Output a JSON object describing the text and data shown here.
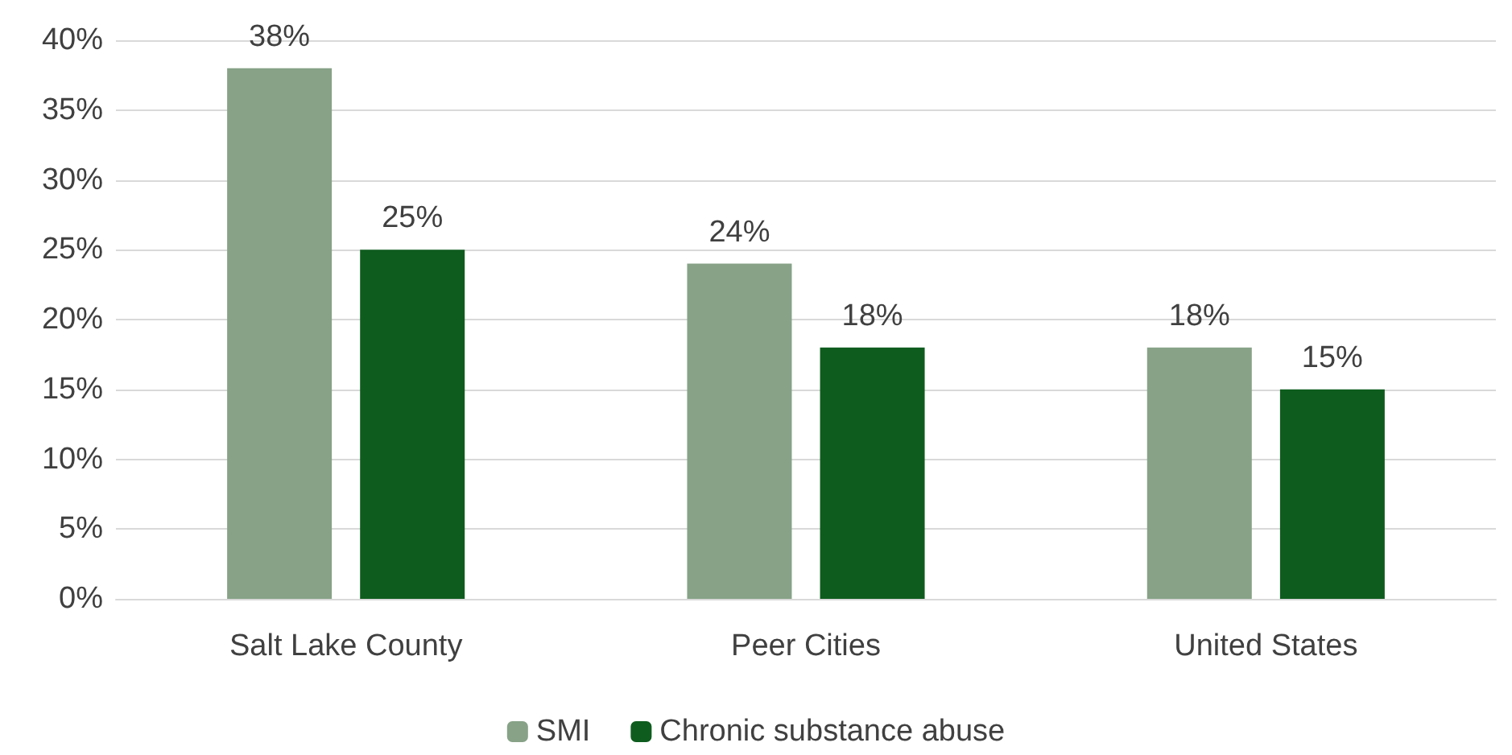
{
  "chart_data": {
    "type": "bar",
    "categories": [
      "Salt Lake County",
      "Peer Cities",
      "United States"
    ],
    "series": [
      {
        "name": "SMI",
        "color": "#87a287",
        "values": [
          38,
          24,
          18
        ],
        "value_labels": [
          "38%",
          "24%",
          "18%"
        ]
      },
      {
        "name": "Chronic substance abuse",
        "color": "#0e5c1e",
        "values": [
          25,
          18,
          15
        ],
        "value_labels": [
          "25%",
          "18%",
          "15%"
        ]
      }
    ],
    "ylim": [
      0,
      40
    ],
    "yticks": [
      {
        "value": 0,
        "label": "0%"
      },
      {
        "value": 5,
        "label": "5%"
      },
      {
        "value": 10,
        "label": "10%"
      },
      {
        "value": 15,
        "label": "15%"
      },
      {
        "value": 20,
        "label": "20%"
      },
      {
        "value": 25,
        "label": "25%"
      },
      {
        "value": 30,
        "label": "30%"
      },
      {
        "value": 35,
        "label": "35%"
      },
      {
        "value": 40,
        "label": "40%"
      }
    ],
    "grid": "y",
    "legend": "bottom"
  }
}
